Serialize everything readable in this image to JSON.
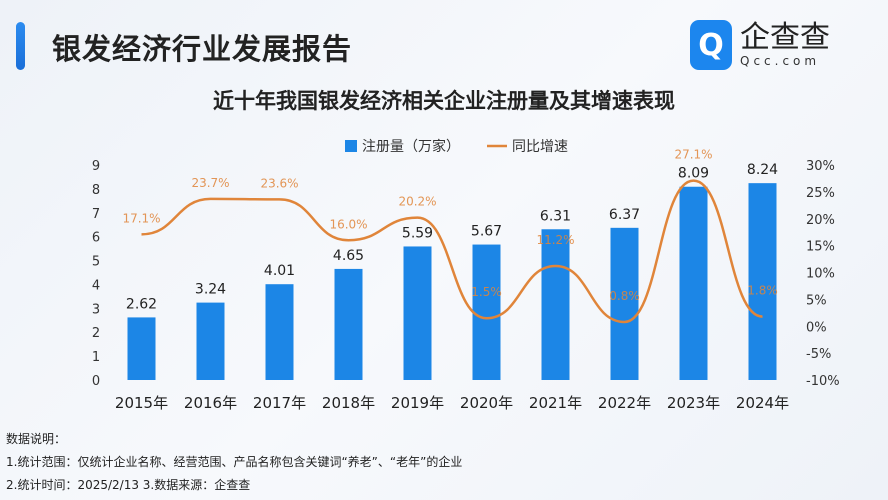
{
  "header": {
    "title": "银发经济行业发展报告",
    "logo_cn": "企查查",
    "logo_en": "Qcc.com"
  },
  "chart_data": {
    "type": "bar+line",
    "title": "近十年我国银发经济相关企业注册量及其增速表现",
    "categories": [
      "2015年",
      "2016年",
      "2017年",
      "2018年",
      "2019年",
      "2020年",
      "2021年",
      "2022年",
      "2023年",
      "2024年"
    ],
    "series": [
      {
        "name": "注册量（万家）",
        "type": "bar",
        "axis": "left",
        "color": "#1c86e6",
        "values": [
          2.62,
          3.24,
          4.01,
          4.65,
          5.59,
          5.67,
          6.31,
          6.37,
          8.09,
          8.24
        ],
        "labels": [
          "2.62",
          "3.24",
          "4.01",
          "4.65",
          "5.59",
          "5.67",
          "6.31",
          "6.37",
          "8.09",
          "8.24"
        ]
      },
      {
        "name": "同比增速",
        "type": "line",
        "axis": "right",
        "color": "#e0853a",
        "values": [
          17.1,
          23.7,
          23.6,
          16.0,
          20.2,
          1.5,
          11.2,
          0.8,
          27.1,
          1.8
        ],
        "labels": [
          "17.1%",
          "23.7%",
          "23.6%",
          "16.0%",
          "20.2%",
          "1.5%",
          "11.2%",
          "0.8%",
          "27.1%",
          "1.8%"
        ]
      }
    ],
    "left_axis": {
      "range": [
        0,
        9
      ],
      "ticks": [
        "0",
        "1",
        "2",
        "3",
        "4",
        "5",
        "6",
        "7",
        "8",
        "9"
      ]
    },
    "right_axis": {
      "range": [
        -10,
        30
      ],
      "ticks": [
        "-10%",
        "-5%",
        "0%",
        "5%",
        "10%",
        "15%",
        "20%",
        "25%",
        "30%"
      ]
    },
    "legend": "top-center",
    "grid": false
  },
  "notes": {
    "heading": "数据说明：",
    "line1": "1.统计范围：仅统计企业名称、经营范围、产品名称包含关键词“养老”、“老年”的企业",
    "line2": "2.统计时间：2025/2/13   3.数据来源：企查查"
  }
}
